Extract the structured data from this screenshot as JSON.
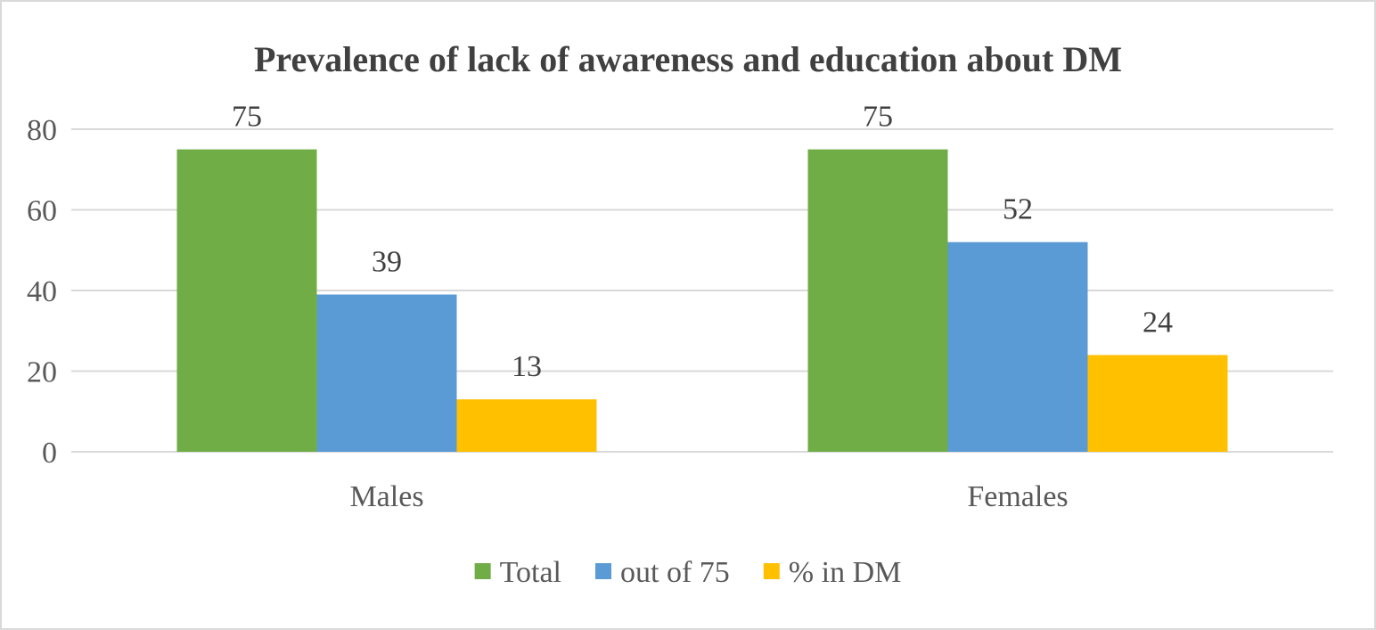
{
  "chart_data": {
    "type": "bar",
    "title": "Prevalence of lack of awareness and education about DM",
    "xlabel": "",
    "ylabel": "",
    "categories": [
      "Males",
      "Females"
    ],
    "series": [
      {
        "name": "Total",
        "values": [
          75,
          75
        ],
        "color": "#70ad47"
      },
      {
        "name": "out of 75",
        "values": [
          39,
          52
        ],
        "color": "#5b9bd5"
      },
      {
        "name": "% in DM",
        "values": [
          13,
          24
        ],
        "color": "#ffc000"
      }
    ],
    "ylim": [
      0,
      80
    ],
    "yticks": [
      0,
      20,
      40,
      60,
      80
    ],
    "grid": true,
    "legend": "bottom",
    "data_labels": true
  }
}
